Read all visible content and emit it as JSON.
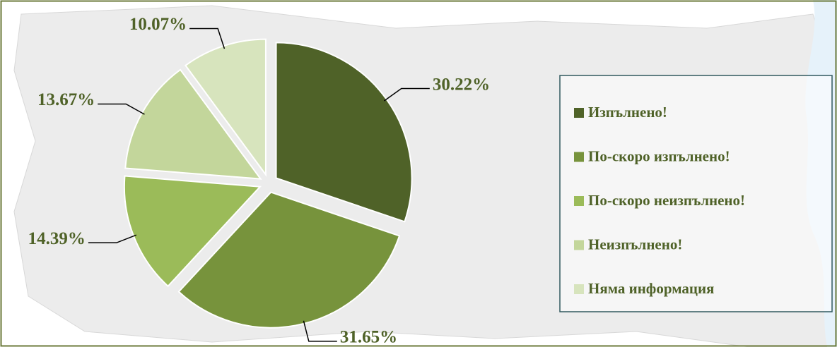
{
  "chart_data": {
    "type": "pie",
    "categories": [
      "Изпълнено!",
      "По-скоро изпълнено!",
      "По-скоро неизпълнено!",
      "Неизпълнено!",
      "Няма информация"
    ],
    "values": [
      30.22,
      31.65,
      14.39,
      13.67,
      10.07
    ],
    "value_labels": [
      "30.22%",
      "31.65%",
      "14.39%",
      "13.67%",
      "10.07%"
    ],
    "colors": [
      "#4f6228",
      "#77933c",
      "#9bbb59",
      "#c3d69b",
      "#d7e4bd"
    ],
    "legend": "right"
  }
}
